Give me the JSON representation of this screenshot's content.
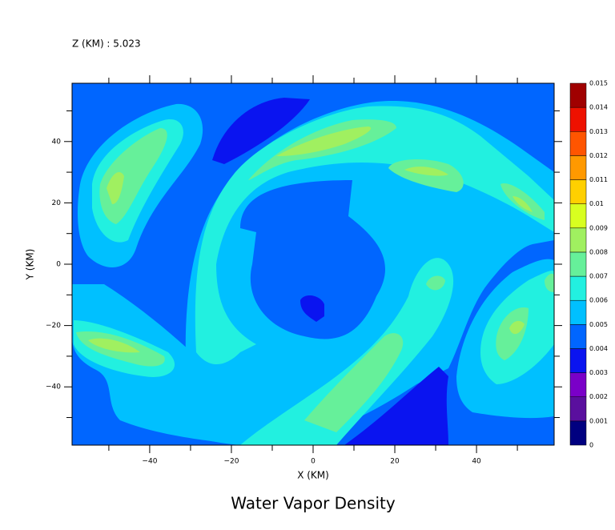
{
  "chart_data": {
    "type": "contour",
    "title": "Water Vapor Density",
    "subtitle": "Z (KM) : 5.023",
    "x_label": "X (KM)",
    "y_label": "Y (KM)",
    "xlim": [
      -59,
      59
    ],
    "ylim": [
      -59,
      59
    ],
    "xticks": [
      {
        "value": -40,
        "label": "−40"
      },
      {
        "value": -20,
        "label": "−20"
      },
      0,
      20,
      40
    ],
    "yticks": [
      {
        "value": -40,
        "label": "−40"
      },
      {
        "value": -20,
        "label": "−20"
      },
      0,
      20,
      40
    ],
    "xminorticks": [
      -50,
      -30,
      -10,
      10,
      30,
      50
    ],
    "yminorticks": [
      -50,
      -30,
      -10,
      10,
      30,
      50
    ],
    "colorbar": {
      "levels": [
        0,
        0.001,
        0.002,
        0.003,
        0.004,
        0.005,
        0.006,
        0.007,
        0.008,
        0.009,
        0.01,
        0.011,
        0.012,
        0.013,
        0.014,
        0.015
      ],
      "colors": [
        "#000080",
        "#5a0f9e",
        "#7a00c8",
        "#0a14f0",
        "#0066ff",
        "#00c0ff",
        "#22f0e0",
        "#66f09a",
        "#a0f060",
        "#d8ff20",
        "#ffd000",
        "#ff9900",
        "#ff5500",
        "#ee1100",
        "#a00000"
      ]
    }
  }
}
